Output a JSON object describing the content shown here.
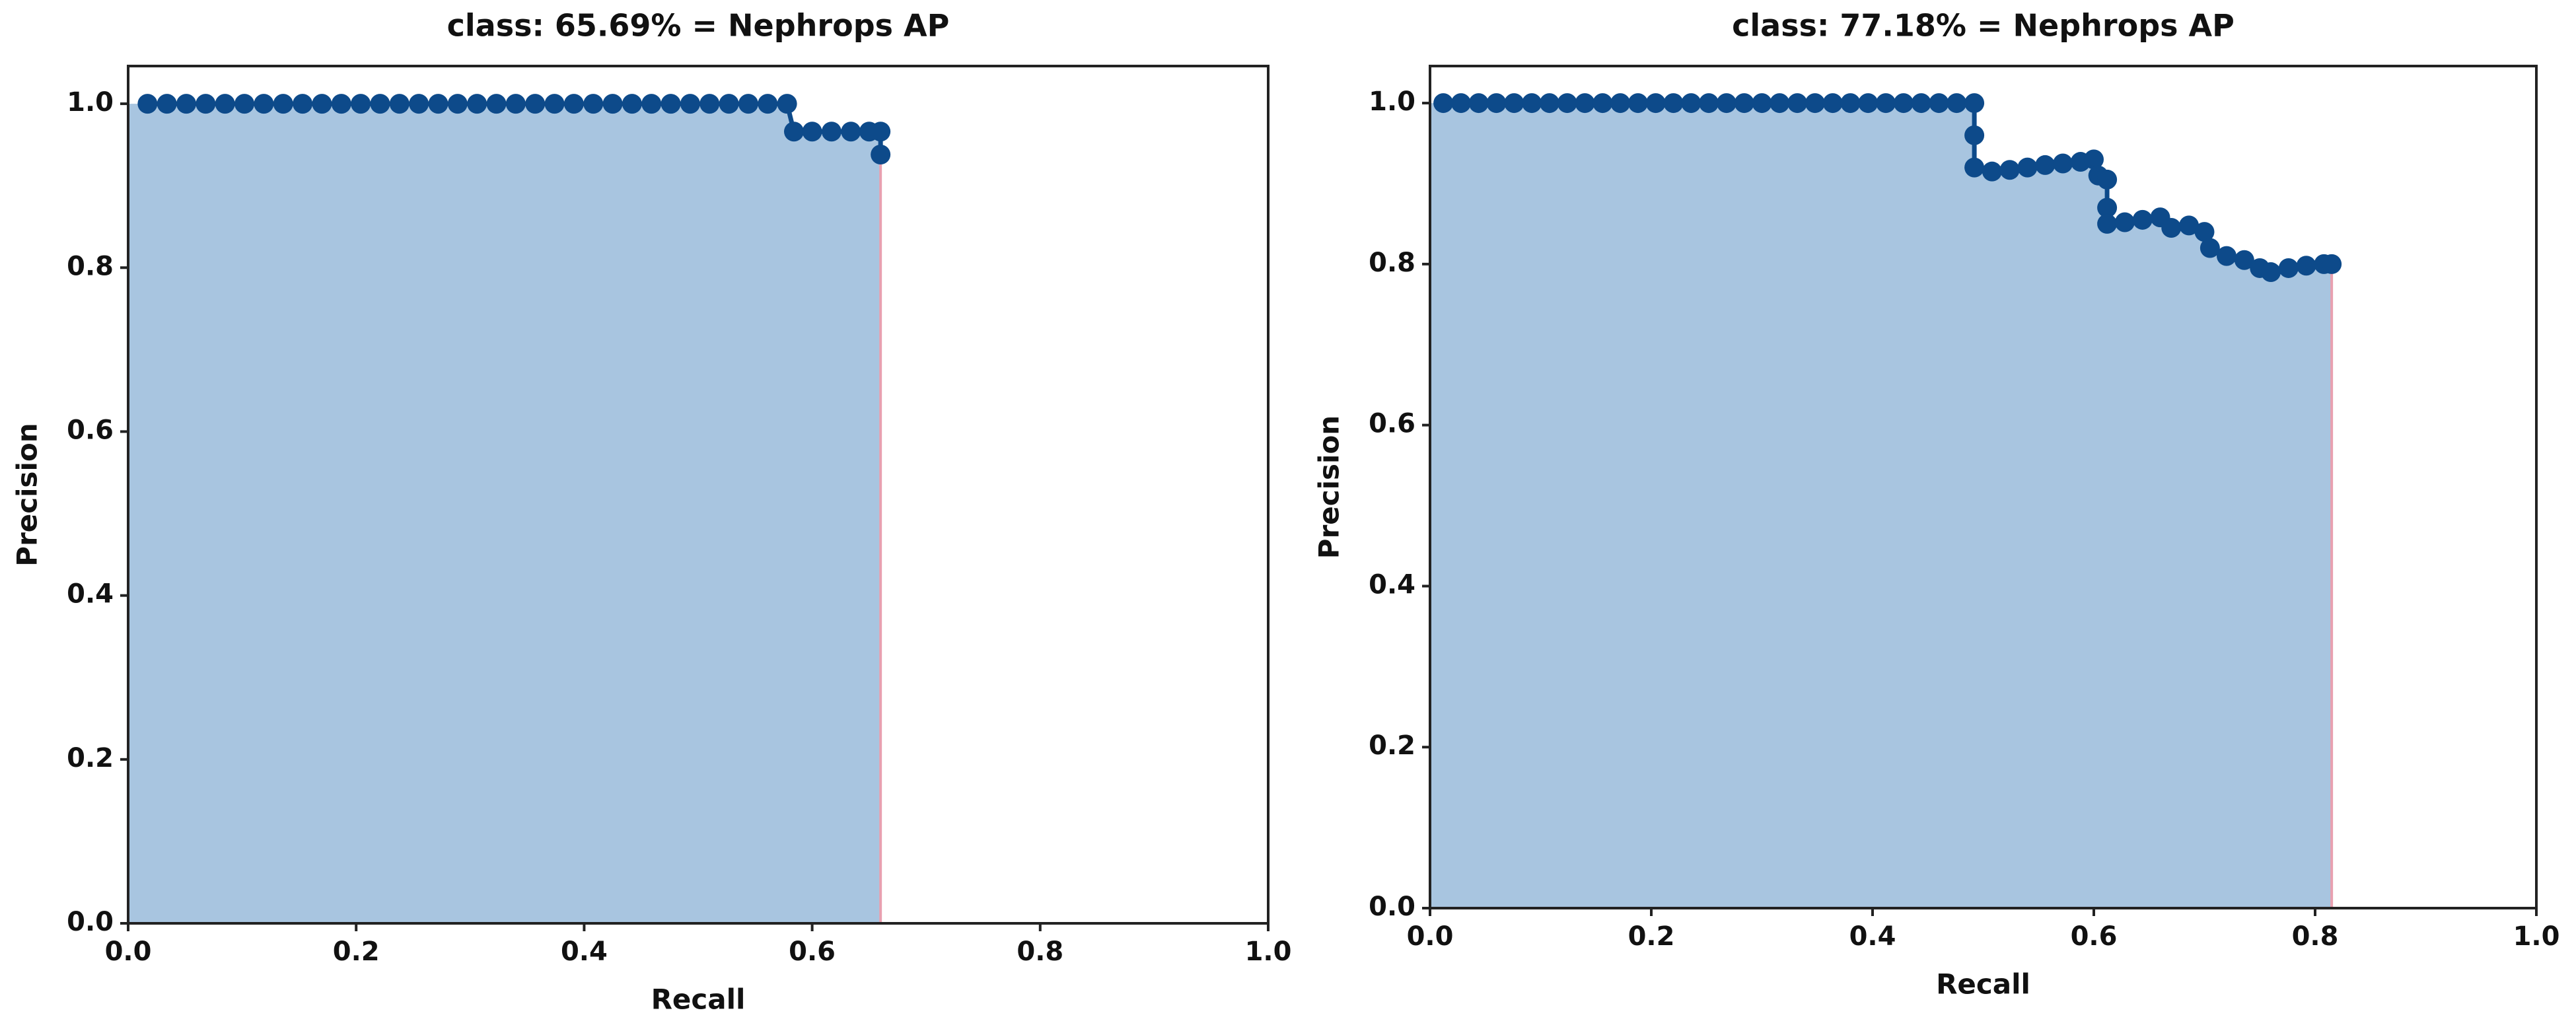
{
  "chart_data": [
    {
      "type": "line",
      "title": "class: 65.69% = Nephrops AP",
      "xlabel": "Recall",
      "ylabel": "Precision",
      "x": [
        0.017,
        0.034,
        0.051,
        0.068,
        0.085,
        0.102,
        0.119,
        0.136,
        0.153,
        0.17,
        0.187,
        0.204,
        0.221,
        0.238,
        0.255,
        0.272,
        0.289,
        0.306,
        0.323,
        0.34,
        0.357,
        0.374,
        0.391,
        0.408,
        0.425,
        0.442,
        0.459,
        0.476,
        0.493,
        0.51,
        0.527,
        0.544,
        0.561,
        0.578,
        0.584,
        0.6,
        0.617,
        0.634,
        0.65,
        0.66,
        0.66
      ],
      "values": [
        1,
        1,
        1,
        1,
        1,
        1,
        1,
        1,
        1,
        1,
        1,
        1,
        1,
        1,
        1,
        1,
        1,
        1,
        1,
        1,
        1,
        1,
        1,
        1,
        1,
        1,
        1,
        1,
        1,
        1,
        1,
        1,
        1,
        1,
        0.966,
        0.966,
        0.966,
        0.966,
        0.966,
        0.966,
        0.938
      ],
      "color": "#0d4a8a",
      "fill_color": "#a8c5e0",
      "edge_color": "#e8a0b0",
      "xlim": [
        0,
        1
      ],
      "ylim": [
        0,
        1.046
      ],
      "xticks": [
        {
          "value": 0,
          "label": "0.0"
        },
        0.2,
        0.4,
        0.6,
        0.8,
        {
          "value": 1,
          "label": "1.0"
        }
      ],
      "yticks": [
        {
          "value": 0,
          "label": "0.0"
        },
        0.2,
        0.4,
        0.6,
        0.8,
        {
          "value": 1,
          "label": "1.0"
        }
      ]
    },
    {
      "type": "line",
      "title": "class: 77.18% = Nephrops AP",
      "xlabel": "Recall",
      "ylabel": "Precision",
      "x": [
        0.012,
        0.028,
        0.044,
        0.06,
        0.076,
        0.092,
        0.108,
        0.124,
        0.14,
        0.156,
        0.172,
        0.188,
        0.204,
        0.22,
        0.236,
        0.252,
        0.268,
        0.284,
        0.3,
        0.316,
        0.332,
        0.348,
        0.364,
        0.38,
        0.396,
        0.412,
        0.428,
        0.444,
        0.46,
        0.476,
        0.492,
        0.492,
        0.492,
        0.508,
        0.524,
        0.54,
        0.556,
        0.572,
        0.588,
        0.6,
        0.604,
        0.612,
        0.612,
        0.612,
        0.628,
        0.644,
        0.66,
        0.67,
        0.686,
        0.7,
        0.705,
        0.72,
        0.736,
        0.75,
        0.76,
        0.776,
        0.792,
        0.808,
        0.815
      ],
      "values": [
        1,
        1,
        1,
        1,
        1,
        1,
        1,
        1,
        1,
        1,
        1,
        1,
        1,
        1,
        1,
        1,
        1,
        1,
        1,
        1,
        1,
        1,
        1,
        1,
        1,
        1,
        1,
        1,
        1,
        1,
        1,
        0.96,
        0.92,
        0.915,
        0.917,
        0.92,
        0.923,
        0.925,
        0.927,
        0.93,
        0.91,
        0.905,
        0.87,
        0.85,
        0.852,
        0.855,
        0.858,
        0.845,
        0.848,
        0.84,
        0.82,
        0.81,
        0.805,
        0.795,
        0.79,
        0.795,
        0.798,
        0.8,
        0.8
      ],
      "color": "#0d4a8a",
      "fill_color": "#a8c5e0",
      "edge_color": "#e8a0b0",
      "xlim": [
        0,
        1
      ],
      "ylim": [
        0,
        1.046
      ],
      "xticks": [
        {
          "value": 0,
          "label": "0.0"
        },
        0.2,
        0.4,
        0.6,
        0.8,
        {
          "value": 1,
          "label": "1.0"
        }
      ],
      "yticks": [
        {
          "value": 0,
          "label": "0.0"
        },
        0.2,
        0.4,
        0.6,
        0.8,
        {
          "value": 1,
          "label": "1.0"
        }
      ]
    }
  ]
}
